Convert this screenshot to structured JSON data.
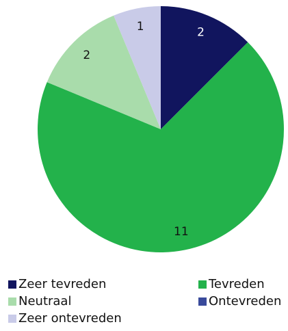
{
  "chart_data": {
    "type": "pie",
    "categories": [
      "Zeer tevreden",
      "Tevreden",
      "Neutraal",
      "Ontevreden",
      "Zeer ontevreden"
    ],
    "values": [
      2,
      11,
      2,
      0,
      1
    ],
    "colors": [
      "#11155e",
      "#23b24b",
      "#a9dcab",
      "#394a9b",
      "#c9cbe8"
    ],
    "label_colors": [
      "#ffffff",
      "#111111",
      "#111111",
      "#111111",
      "#111111"
    ]
  }
}
